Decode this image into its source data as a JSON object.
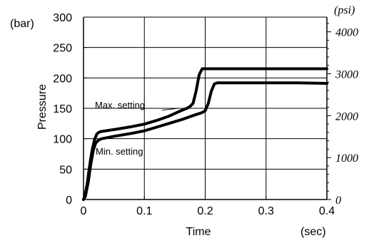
{
  "chart_data": {
    "type": "line",
    "xlabel": "Time",
    "ylabel": "Pressure",
    "x_unit": "(sec)",
    "y_unit_left": "(bar)",
    "y_unit_right": "(psi)",
    "xlim": [
      0,
      0.4
    ],
    "ylim": [
      0,
      300
    ],
    "ylim_right": [
      0,
      4351
    ],
    "x_ticks": [
      "0",
      "0.1",
      "0.2",
      "0.3",
      "0.4"
    ],
    "y_ticks_left": [
      "0",
      "50",
      "100",
      "150",
      "200",
      "250",
      "300"
    ],
    "y_ticks_right": [
      "0",
      "1000",
      "2000",
      "3000",
      "4000"
    ],
    "grid": true,
    "series": [
      {
        "name": "Max. setting",
        "x": [
          0,
          0.002,
          0.006,
          0.01,
          0.014,
          0.018,
          0.022,
          0.026,
          0.03,
          0.05,
          0.08,
          0.1,
          0.12,
          0.14,
          0.16,
          0.17,
          0.175,
          0.18,
          0.185,
          0.19,
          0.195,
          0.2,
          0.25,
          0.3,
          0.35,
          0.4
        ],
        "y": [
          0,
          5,
          25,
          55,
          80,
          98,
          108,
          111,
          112,
          115,
          120,
          124,
          130,
          137,
          146,
          150,
          153,
          158,
          178,
          205,
          215,
          215,
          215,
          215,
          215,
          215
        ]
      },
      {
        "name": "Min. setting",
        "x": [
          0,
          0.003,
          0.008,
          0.012,
          0.016,
          0.02,
          0.025,
          0.03,
          0.05,
          0.08,
          0.1,
          0.12,
          0.14,
          0.16,
          0.18,
          0.195,
          0.2,
          0.205,
          0.21,
          0.215,
          0.22,
          0.25,
          0.3,
          0.35,
          0.4
        ],
        "y": [
          0,
          5,
          30,
          58,
          80,
          93,
          98,
          100,
          104,
          109,
          113,
          119,
          125,
          131,
          138,
          143,
          146,
          158,
          178,
          190,
          192,
          192,
          192,
          192,
          191
        ]
      }
    ],
    "annotations": [
      {
        "text": "Max. setting"
      },
      {
        "text": "Min. setting"
      }
    ]
  },
  "colors": {
    "line": "#000000",
    "grid": "#000000"
  }
}
